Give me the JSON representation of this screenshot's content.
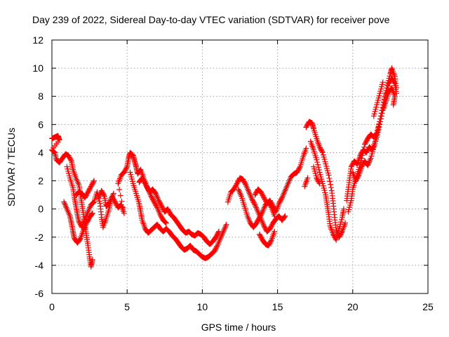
{
  "chart_data": {
    "type": "scatter",
    "title": "Day 239 of 2022, Sidereal Day-to-day VTEC variation (SDTVAR) for receiver pove",
    "xlabel": "GPS time / hours",
    "ylabel": "SDTVAR / TECUs",
    "xlim": [
      0,
      25
    ],
    "ylim": [
      -6,
      12
    ],
    "x_ticks": [
      "0",
      "5",
      "10",
      "15",
      "20",
      "25"
    ],
    "y_ticks": [
      "-6",
      "-4",
      "-2",
      "0",
      "2",
      "4",
      "6",
      "8",
      "10",
      "12"
    ],
    "grid": true,
    "marker": "+",
    "series": [
      {
        "name": "SDTVAR",
        "color": "#ff0000",
        "points": [
          [
            0.0,
            5.0
          ],
          [
            0.2,
            5.1
          ],
          [
            0.4,
            5.2
          ],
          [
            0.5,
            4.9
          ],
          [
            0.0,
            4.2
          ],
          [
            0.2,
            4.0
          ],
          [
            0.3,
            3.5
          ],
          [
            0.5,
            3.3
          ],
          [
            0.7,
            3.6
          ],
          [
            0.9,
            3.9
          ],
          [
            1.1,
            3.8
          ],
          [
            1.3,
            3.4
          ],
          [
            1.4,
            2.8
          ],
          [
            1.6,
            2.2
          ],
          [
            1.8,
            1.7
          ],
          [
            1.9,
            1.0
          ],
          [
            2.0,
            0.3
          ],
          [
            2.1,
            -0.4
          ],
          [
            2.2,
            -1.2
          ],
          [
            2.3,
            -1.9
          ],
          [
            2.4,
            -2.6
          ],
          [
            2.5,
            -3.4
          ],
          [
            2.6,
            -4.1
          ],
          [
            2.7,
            -3.6
          ],
          [
            0.8,
            0.5
          ],
          [
            1.0,
            0.0
          ],
          [
            1.2,
            -0.5
          ],
          [
            1.3,
            -1.0
          ],
          [
            1.4,
            -1.6
          ],
          [
            1.5,
            -2.1
          ],
          [
            1.7,
            -2.4
          ],
          [
            1.9,
            -2.1
          ],
          [
            2.1,
            -1.5
          ],
          [
            2.3,
            -1.0
          ],
          [
            2.5,
            -0.6
          ],
          [
            2.7,
            -0.3
          ],
          [
            1.6,
            1.0
          ],
          [
            1.8,
            1.2
          ],
          [
            2.0,
            1.1
          ],
          [
            2.2,
            0.8
          ],
          [
            2.4,
            1.2
          ],
          [
            2.6,
            1.6
          ],
          [
            2.8,
            2.0
          ],
          [
            1.0,
            3.0
          ],
          [
            1.2,
            2.2
          ],
          [
            1.4,
            1.5
          ],
          [
            1.5,
            0.8
          ],
          [
            1.6,
            0.2
          ],
          [
            1.7,
            -0.4
          ],
          [
            1.8,
            -0.9
          ],
          [
            2.0,
            -1.3
          ],
          [
            2.2,
            -0.7
          ],
          [
            2.4,
            -0.2
          ],
          [
            2.6,
            0.3
          ],
          [
            2.8,
            0.5
          ],
          [
            3.0,
            1.2
          ],
          [
            3.2,
            0.4
          ],
          [
            3.3,
            -0.6
          ],
          [
            3.4,
            -1.3
          ],
          [
            3.6,
            -0.7
          ],
          [
            3.8,
            0.0
          ],
          [
            3.9,
            0.6
          ],
          [
            4.1,
            1.1
          ],
          [
            3.1,
            0.8
          ],
          [
            3.3,
            1.3
          ],
          [
            3.5,
            0.9
          ],
          [
            3.6,
            0.2
          ],
          [
            3.8,
            0.4
          ],
          [
            4.0,
            0.9
          ],
          [
            4.2,
            0.5
          ],
          [
            4.4,
            0.1
          ],
          [
            4.6,
            0.3
          ],
          [
            4.8,
            -0.3
          ],
          [
            4.4,
            1.8
          ],
          [
            4.6,
            2.4
          ],
          [
            4.8,
            2.6
          ],
          [
            5.0,
            3.0
          ],
          [
            5.1,
            3.6
          ],
          [
            5.2,
            4.0
          ],
          [
            5.4,
            3.8
          ],
          [
            5.5,
            3.4
          ],
          [
            5.6,
            3.0
          ],
          [
            5.7,
            2.5
          ],
          [
            5.9,
            2.8
          ],
          [
            6.1,
            2.2
          ],
          [
            6.3,
            1.6
          ],
          [
            6.5,
            1.2
          ],
          [
            6.7,
            1.4
          ],
          [
            6.9,
            1.1
          ],
          [
            7.1,
            0.6
          ],
          [
            7.3,
            0.2
          ],
          [
            7.5,
            -0.2
          ],
          [
            7.7,
            0.0
          ],
          [
            7.9,
            -0.4
          ],
          [
            8.1,
            -0.6
          ],
          [
            8.3,
            -0.9
          ],
          [
            8.5,
            -1.2
          ],
          [
            8.7,
            -1.5
          ],
          [
            8.9,
            -1.7
          ],
          [
            9.1,
            -1.6
          ],
          [
            9.3,
            -1.8
          ],
          [
            9.5,
            -1.9
          ],
          [
            9.7,
            -1.7
          ],
          [
            9.9,
            -1.8
          ],
          [
            10.1,
            -2.0
          ],
          [
            10.3,
            -2.3
          ],
          [
            10.5,
            -2.5
          ],
          [
            10.7,
            -2.3
          ],
          [
            10.9,
            -2.0
          ],
          [
            11.1,
            -1.6
          ],
          [
            5.2,
            2.6
          ],
          [
            5.4,
            1.8
          ],
          [
            5.6,
            1.1
          ],
          [
            5.8,
            0.4
          ],
          [
            5.9,
            -0.2
          ],
          [
            6.0,
            -0.8
          ],
          [
            6.2,
            -1.4
          ],
          [
            6.4,
            -1.7
          ],
          [
            6.6,
            -1.5
          ],
          [
            6.8,
            -1.3
          ],
          [
            7.0,
            -1.1
          ],
          [
            7.2,
            -1.4
          ],
          [
            7.4,
            -1.6
          ],
          [
            7.6,
            -1.4
          ],
          [
            7.8,
            -1.6
          ],
          [
            8.0,
            -1.9
          ],
          [
            8.2,
            -2.1
          ],
          [
            8.4,
            -2.4
          ],
          [
            8.6,
            -2.7
          ],
          [
            8.8,
            -2.9
          ],
          [
            9.0,
            -2.8
          ],
          [
            9.2,
            -2.6
          ],
          [
            9.4,
            -2.9
          ],
          [
            9.6,
            -3.0
          ],
          [
            9.8,
            -3.2
          ],
          [
            10.0,
            -3.4
          ],
          [
            10.2,
            -3.5
          ],
          [
            10.4,
            -3.4
          ],
          [
            10.6,
            -3.2
          ],
          [
            10.8,
            -3.0
          ],
          [
            11.0,
            -2.6
          ],
          [
            11.2,
            -2.1
          ],
          [
            11.4,
            -1.6
          ],
          [
            11.6,
            -1.1
          ],
          [
            5.8,
            1.9
          ],
          [
            6.0,
            2.2
          ],
          [
            6.2,
            1.8
          ],
          [
            6.4,
            1.4
          ],
          [
            6.6,
            0.9
          ],
          [
            6.8,
            0.5
          ],
          [
            7.0,
            0.1
          ],
          [
            7.2,
            -0.4
          ],
          [
            7.4,
            -0.8
          ],
          [
            7.6,
            -1.0
          ],
          [
            11.7,
            0.5
          ],
          [
            11.9,
            1.2
          ],
          [
            12.1,
            1.4
          ],
          [
            12.3,
            1.8
          ],
          [
            12.5,
            2.2
          ],
          [
            12.7,
            2.1
          ],
          [
            12.9,
            1.7
          ],
          [
            13.1,
            1.2
          ],
          [
            13.3,
            0.7
          ],
          [
            13.5,
            0.3
          ],
          [
            13.7,
            -0.2
          ],
          [
            13.9,
            -0.7
          ],
          [
            14.1,
            -1.2
          ],
          [
            14.3,
            -1.6
          ],
          [
            14.5,
            -1.4
          ],
          [
            14.7,
            -1.0
          ],
          [
            14.9,
            -0.7
          ],
          [
            15.1,
            -0.5
          ],
          [
            15.3,
            -0.8
          ],
          [
            15.5,
            -0.5
          ],
          [
            12.4,
            1.4
          ],
          [
            12.6,
            0.9
          ],
          [
            12.8,
            0.2
          ],
          [
            13.0,
            -0.5
          ],
          [
            13.2,
            -1.0
          ],
          [
            13.4,
            -1.3
          ],
          [
            13.6,
            -1.0
          ],
          [
            13.8,
            -0.6
          ],
          [
            14.0,
            -0.2
          ],
          [
            14.2,
            0.3
          ],
          [
            14.4,
            0.5
          ],
          [
            14.6,
            0.1
          ],
          [
            14.8,
            -0.5
          ],
          [
            13.5,
            1.0
          ],
          [
            13.7,
            1.4
          ],
          [
            13.9,
            1.2
          ],
          [
            14.1,
            0.8
          ],
          [
            14.3,
            0.4
          ],
          [
            14.5,
            0.6
          ],
          [
            14.7,
            0.2
          ],
          [
            14.9,
            -0.2
          ],
          [
            15.1,
            0.4
          ],
          [
            15.3,
            0.8
          ],
          [
            15.5,
            1.3
          ],
          [
            15.7,
            1.8
          ],
          [
            15.9,
            2.3
          ],
          [
            16.1,
            2.5
          ],
          [
            16.3,
            2.6
          ],
          [
            16.5,
            3.0
          ],
          [
            16.7,
            3.7
          ],
          [
            16.9,
            4.3
          ],
          [
            13.8,
            -1.8
          ],
          [
            14.0,
            -2.2
          ],
          [
            14.2,
            -2.5
          ],
          [
            14.4,
            -2.6
          ],
          [
            14.6,
            -2.2
          ],
          [
            14.8,
            -1.6
          ],
          [
            16.8,
            1.6
          ],
          [
            17.0,
            2.2
          ],
          [
            16.9,
            5.8
          ],
          [
            17.1,
            6.2
          ],
          [
            17.3,
            6.1
          ],
          [
            17.4,
            5.7
          ],
          [
            17.6,
            5.0
          ],
          [
            17.8,
            4.4
          ],
          [
            18.0,
            4.0
          ],
          [
            18.2,
            3.2
          ],
          [
            18.4,
            2.4
          ],
          [
            18.6,
            1.3
          ],
          [
            18.7,
            0.4
          ],
          [
            18.8,
            -0.6
          ],
          [
            18.9,
            -1.5
          ],
          [
            19.1,
            -2.0
          ],
          [
            19.3,
            -1.6
          ],
          [
            19.5,
            -1.0
          ],
          [
            17.2,
            4.8
          ],
          [
            17.4,
            4.2
          ],
          [
            17.6,
            3.5
          ],
          [
            17.8,
            2.6
          ],
          [
            18.0,
            1.8
          ],
          [
            18.2,
            1.0
          ],
          [
            18.3,
            0.3
          ],
          [
            18.4,
            -0.4
          ],
          [
            18.5,
            -1.2
          ],
          [
            18.7,
            -1.8
          ],
          [
            18.9,
            -2.2
          ],
          [
            19.1,
            -1.4
          ],
          [
            19.3,
            -0.6
          ],
          [
            19.4,
            0.0
          ],
          [
            17.4,
            3.0
          ],
          [
            17.6,
            2.2
          ],
          [
            17.8,
            1.8
          ],
          [
            19.6,
            0.6
          ],
          [
            19.7,
            1.4
          ],
          [
            19.8,
            2.2
          ],
          [
            19.9,
            3.0
          ],
          [
            20.1,
            3.4
          ],
          [
            20.3,
            3.2
          ],
          [
            20.5,
            3.8
          ],
          [
            20.7,
            4.2
          ],
          [
            20.9,
            4.0
          ],
          [
            21.1,
            4.4
          ],
          [
            21.3,
            4.2
          ],
          [
            21.5,
            4.8
          ],
          [
            21.7,
            5.8
          ],
          [
            21.9,
            6.8
          ],
          [
            22.1,
            7.8
          ],
          [
            22.3,
            8.8
          ],
          [
            22.5,
            9.6
          ],
          [
            22.6,
            10.0
          ],
          [
            22.8,
            9.4
          ],
          [
            22.9,
            8.6
          ],
          [
            19.7,
            -0.2
          ],
          [
            19.9,
            0.6
          ],
          [
            20.0,
            1.4
          ],
          [
            20.2,
            2.1
          ],
          [
            20.4,
            2.8
          ],
          [
            20.6,
            3.6
          ],
          [
            20.8,
            4.6
          ],
          [
            21.0,
            5.0
          ],
          [
            21.2,
            5.3
          ],
          [
            21.4,
            5.1
          ],
          [
            21.6,
            5.4
          ],
          [
            21.8,
            6.2
          ],
          [
            22.0,
            7.2
          ],
          [
            22.2,
            8.1
          ],
          [
            22.4,
            8.9
          ],
          [
            22.6,
            9.3
          ],
          [
            22.8,
            8.9
          ],
          [
            22.9,
            8.2
          ],
          [
            20.0,
            2.6
          ],
          [
            20.2,
            2.0
          ],
          [
            20.4,
            2.4
          ],
          [
            20.6,
            3.0
          ],
          [
            20.8,
            3.4
          ],
          [
            21.0,
            3.1
          ],
          [
            21.2,
            3.6
          ],
          [
            21.4,
            4.4
          ],
          [
            21.6,
            5.1
          ],
          [
            21.8,
            6.0
          ],
          [
            22.0,
            7.0
          ],
          [
            22.2,
            7.6
          ],
          [
            22.4,
            8.3
          ],
          [
            22.6,
            8.6
          ],
          [
            22.8,
            8.0
          ],
          [
            22.7,
            7.4
          ],
          [
            21.4,
            6.6
          ],
          [
            21.6,
            7.4
          ],
          [
            21.8,
            8.2
          ],
          [
            22.0,
            9.0
          ]
        ]
      }
    ]
  }
}
